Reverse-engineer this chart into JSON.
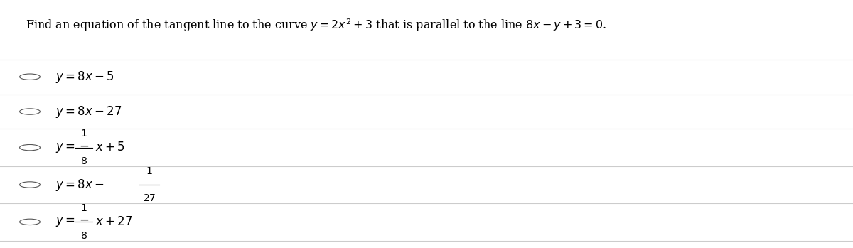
{
  "title": "Find an equation of the tangent line to the curve $y = 2x^2 + 3$ that is parallel to the line $8x - y + 3 = 0$.",
  "background_color": "#ffffff",
  "text_color": "#000000",
  "line_color": "#cccccc",
  "circle_color": "#555555",
  "title_fontsize": 11.5,
  "option_fontsize": 12
}
